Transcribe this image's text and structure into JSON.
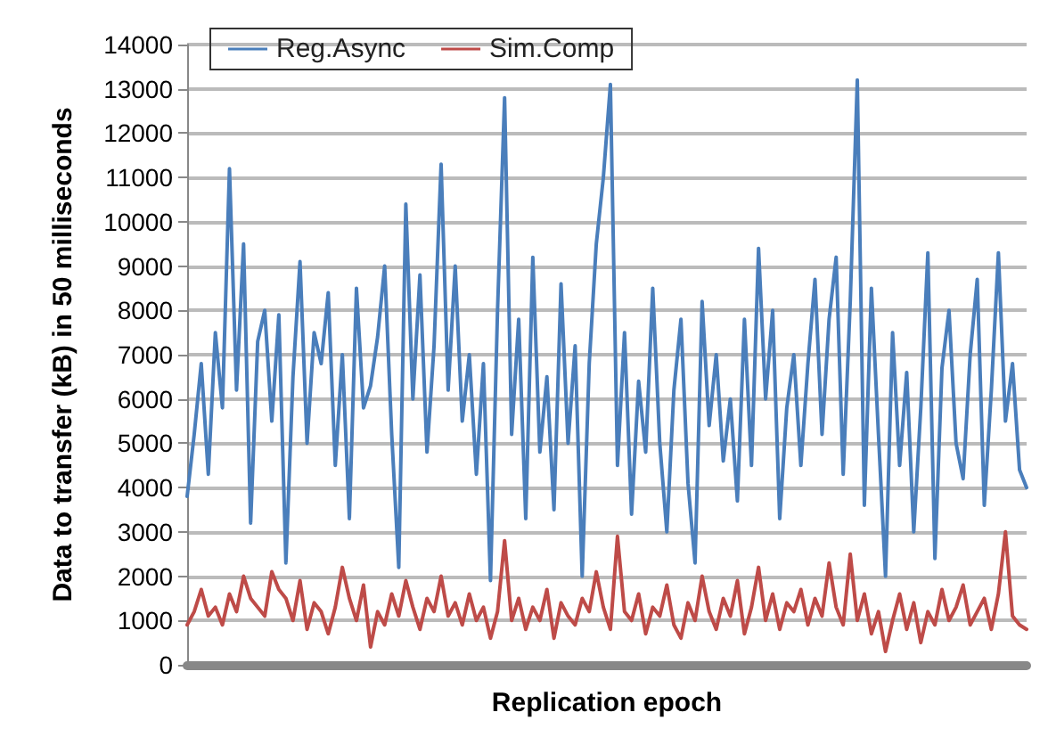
{
  "chart_data": {
    "type": "line",
    "xlabel": "Replication epoch",
    "ylabel": "Data to transfer (kB) in 50 milliseconds",
    "categories": [
      null,
      null,
      null,
      null,
      null,
      null,
      null,
      null,
      null,
      null,
      null,
      null,
      null,
      null,
      null,
      null,
      null,
      null,
      null,
      null,
      null,
      null,
      null,
      null,
      null,
      null,
      null,
      null,
      null,
      null,
      null,
      null,
      null,
      null,
      null,
      null,
      null,
      null,
      null,
      null,
      null,
      null,
      null,
      null,
      null,
      null,
      null,
      null,
      null,
      null,
      null,
      null,
      null,
      null,
      null,
      null,
      null,
      null,
      null,
      null,
      null,
      null,
      null,
      null,
      null,
      null,
      null,
      null,
      null,
      null,
      null,
      null,
      null,
      null,
      null,
      null,
      null,
      null,
      null,
      null,
      null,
      null,
      null,
      null,
      null,
      null,
      null,
      null,
      null,
      null,
      null,
      null,
      null,
      null,
      null,
      null,
      null,
      null,
      null,
      null,
      null,
      null,
      null,
      null,
      null,
      null,
      null,
      null,
      null,
      null,
      null,
      null,
      null,
      null,
      null,
      null,
      null,
      null,
      null,
      null
    ],
    "series": [
      {
        "name": "Reg.Async",
        "color": "#4a7ebb",
        "values": [
          3800,
          5200,
          6800,
          4300,
          7500,
          5800,
          11200,
          6200,
          9500,
          3200,
          7300,
          8000,
          5500,
          7900,
          2300,
          6500,
          9100,
          5000,
          7500,
          6800,
          8400,
          4500,
          7000,
          3300,
          8500,
          5800,
          6300,
          7400,
          9000,
          5200,
          2200,
          10400,
          6000,
          8800,
          4800,
          7200,
          11300,
          6200,
          9000,
          5500,
          7000,
          4300,
          6800,
          1900,
          8000,
          12800,
          5200,
          7800,
          3300,
          9200,
          4800,
          6500,
          3500,
          8600,
          5000,
          7200,
          2000,
          6800,
          9500,
          11000,
          13100,
          4500,
          7500,
          3400,
          6400,
          4800,
          8500,
          5000,
          3000,
          6200,
          7800,
          4100,
          2300,
          8200,
          5400,
          7000,
          4600,
          6000,
          3700,
          7800,
          4500,
          9400,
          6000,
          8000,
          3300,
          5800,
          7000,
          4500,
          6800,
          8700,
          5200,
          7800,
          9200,
          4300,
          8200,
          13200,
          3600,
          8500,
          5200,
          2000,
          7500,
          4500,
          6600,
          3000,
          5800,
          9300,
          2400,
          6700,
          8000,
          5000,
          4200,
          7000,
          8700,
          3600,
          6200,
          9300,
          5500,
          6800,
          4400,
          4000
        ]
      },
      {
        "name": "Sim.Comp",
        "color": "#be4b48",
        "values": [
          900,
          1200,
          1700,
          1100,
          1300,
          900,
          1600,
          1200,
          2000,
          1500,
          1300,
          1100,
          2100,
          1700,
          1500,
          1000,
          1900,
          800,
          1400,
          1200,
          700,
          1300,
          2200,
          1500,
          1000,
          1800,
          400,
          1200,
          900,
          1600,
          1100,
          1900,
          1300,
          800,
          1500,
          1200,
          2000,
          1100,
          1400,
          900,
          1600,
          1000,
          1300,
          600,
          1200,
          2800,
          1000,
          1500,
          800,
          1300,
          1000,
          1700,
          600,
          1400,
          1100,
          900,
          1500,
          1200,
          2100,
          1300,
          800,
          2900,
          1200,
          1000,
          1600,
          700,
          1300,
          1100,
          1800,
          900,
          600,
          1400,
          1000,
          2000,
          1200,
          800,
          1500,
          1100,
          1900,
          700,
          1300,
          2200,
          1000,
          1600,
          800,
          1400,
          1200,
          1700,
          900,
          1500,
          1100,
          2300,
          1300,
          900,
          2500,
          1000,
          1600,
          700,
          1200,
          300,
          1000,
          1600,
          800,
          1400,
          500,
          1200,
          900,
          1700,
          1000,
          1300,
          1800,
          900,
          1200,
          1500,
          800,
          1600,
          3000,
          1100,
          900,
          800
        ]
      }
    ],
    "ylim": [
      0,
      14000
    ],
    "yticks": [
      0,
      1000,
      2000,
      3000,
      4000,
      5000,
      6000,
      7000,
      8000,
      9000,
      10000,
      11000,
      12000,
      13000,
      14000
    ],
    "grid": "y",
    "legend": "top left",
    "marker": "none",
    "line_style": "solid"
  }
}
